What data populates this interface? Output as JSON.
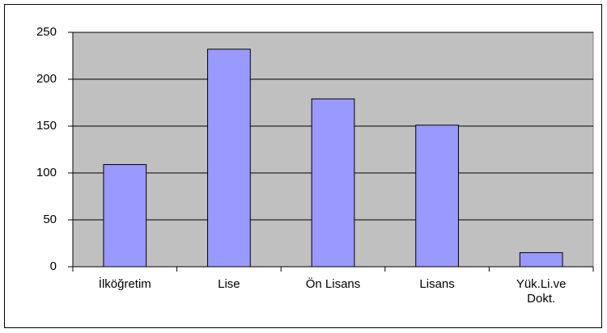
{
  "chart_data": {
    "type": "bar",
    "categories": [
      "İlköğretim",
      "Lise",
      "Ön Lisans",
      "Lisans",
      "Yük.Li.ve Dokt."
    ],
    "values": [
      109,
      232,
      179,
      151,
      15
    ],
    "color": "#9999ff",
    "ylim": [
      0,
      250
    ],
    "yticks": [
      0,
      50,
      100,
      150,
      200,
      250
    ],
    "grid": true
  }
}
